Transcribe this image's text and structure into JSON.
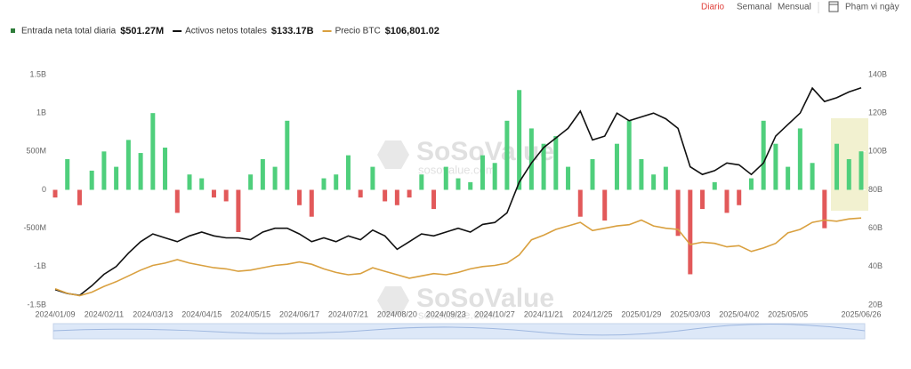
{
  "toolbar": {
    "tabs": [
      "Diario",
      "Semanal",
      "Mensual"
    ],
    "range_button": "Phạm vi ngày"
  },
  "watermark": {
    "brand": "SoSoValue",
    "site": "sosovalue.com"
  },
  "chart_data": {
    "type": "bar",
    "categories": [
      "2024/01/09",
      null,
      null,
      null,
      "2024/02/11",
      null,
      null,
      null,
      "2024/03/13",
      null,
      null,
      null,
      "2024/04/15",
      null,
      null,
      null,
      "2024/05/15",
      null,
      null,
      null,
      "2024/06/17",
      null,
      null,
      null,
      "2024/07/21",
      null,
      null,
      null,
      "2024/08/20",
      null,
      null,
      null,
      "2024/09/23",
      null,
      null,
      null,
      "2024/10/27",
      null,
      null,
      null,
      "2024/11/21",
      null,
      null,
      null,
      "2024/12/25",
      null,
      null,
      null,
      "2025/01/29",
      null,
      null,
      null,
      "2025/03/03",
      null,
      null,
      null,
      "2025/04/02",
      null,
      null,
      null,
      "2025/05/05",
      null,
      null,
      null,
      null,
      null,
      "2025/06/26"
    ],
    "series": [
      {
        "name": "Entrada neta total diaria",
        "latest_label": "$501.27M",
        "color": "#4fcf7c",
        "negative_color": "#e2595a",
        "legend_color": "#2f7d3a",
        "values": [
          -100,
          400,
          -200,
          250,
          500,
          300,
          650,
          480,
          1000,
          550,
          -300,
          200,
          150,
          -100,
          -150,
          -550,
          200,
          400,
          300,
          900,
          -200,
          -350,
          150,
          200,
          450,
          -100,
          300,
          -150,
          -200,
          -100,
          200,
          -250,
          300,
          150,
          100,
          450,
          350,
          900,
          1300,
          800,
          600,
          700,
          300,
          -350,
          400,
          -400,
          600,
          900,
          400,
          200,
          300,
          -600,
          -1100,
          -250,
          100,
          -300,
          -200,
          150,
          900,
          600,
          300,
          800,
          350,
          -500,
          600,
          400,
          501.27
        ]
      },
      {
        "name": "Activos netos totales",
        "latest_label": "$133.17B",
        "color": "#111111",
        "axis": "y2",
        "values": [
          28,
          26,
          25,
          30,
          36,
          40,
          47,
          53,
          57,
          55,
          53,
          56,
          58,
          56,
          55,
          55,
          54,
          58,
          60,
          60,
          57,
          53,
          55,
          53,
          56,
          54,
          59,
          56,
          49,
          53,
          57,
          56,
          58,
          60,
          58,
          62,
          63,
          68,
          84,
          94,
          102,
          107,
          112,
          121,
          106,
          108,
          120,
          116,
          118,
          120,
          117,
          112,
          92,
          88,
          90,
          94,
          93,
          88,
          94,
          108,
          114,
          120,
          133,
          126,
          128,
          131,
          133.17
        ]
      },
      {
        "name": "Precio BTC",
        "latest_label": "$106,801.02",
        "color": "#d9a03f",
        "axis": "y3",
        "values": [
          46000,
          42000,
          40000,
          43000,
          48000,
          52000,
          57000,
          62000,
          66000,
          68000,
          71000,
          68000,
          66000,
          64000,
          63000,
          61000,
          62000,
          64000,
          66000,
          67000,
          69000,
          67000,
          63000,
          60000,
          58000,
          59000,
          64000,
          61000,
          58000,
          55000,
          57000,
          59000,
          58000,
          60000,
          63000,
          65000,
          66000,
          68000,
          75000,
          88000,
          92000,
          97000,
          100000,
          103000,
          96000,
          98000,
          100000,
          101000,
          105000,
          100000,
          98000,
          97000,
          84000,
          86000,
          85000,
          82000,
          83000,
          78000,
          81000,
          85000,
          94000,
          97000,
          103000,
          105000,
          104000,
          106000,
          106801.02
        ]
      }
    ],
    "ylim": [
      -1500,
      1500
    ],
    "yticks": [
      {
        "value": -1500,
        "label": "-1.5B"
      },
      {
        "value": -1000,
        "label": "-1B"
      },
      {
        "value": -500,
        "label": "-500M"
      },
      0,
      {
        "value": 500,
        "label": "500M"
      },
      {
        "value": 1000,
        "label": "1B"
      },
      {
        "value": 1500,
        "label": "1.5B"
      }
    ],
    "y2lim": [
      20,
      140
    ],
    "y2ticks": [
      {
        "value": 20,
        "label": "20B"
      },
      {
        "value": 40,
        "label": "40B"
      },
      {
        "value": 60,
        "label": "60B"
      },
      {
        "value": 80,
        "label": "80B"
      },
      {
        "value": 100,
        "label": "100B"
      },
      {
        "value": 120,
        "label": "120B"
      },
      {
        "value": 140,
        "label": "140B"
      }
    ],
    "y3lim": [
      32000,
      230000
    ]
  }
}
